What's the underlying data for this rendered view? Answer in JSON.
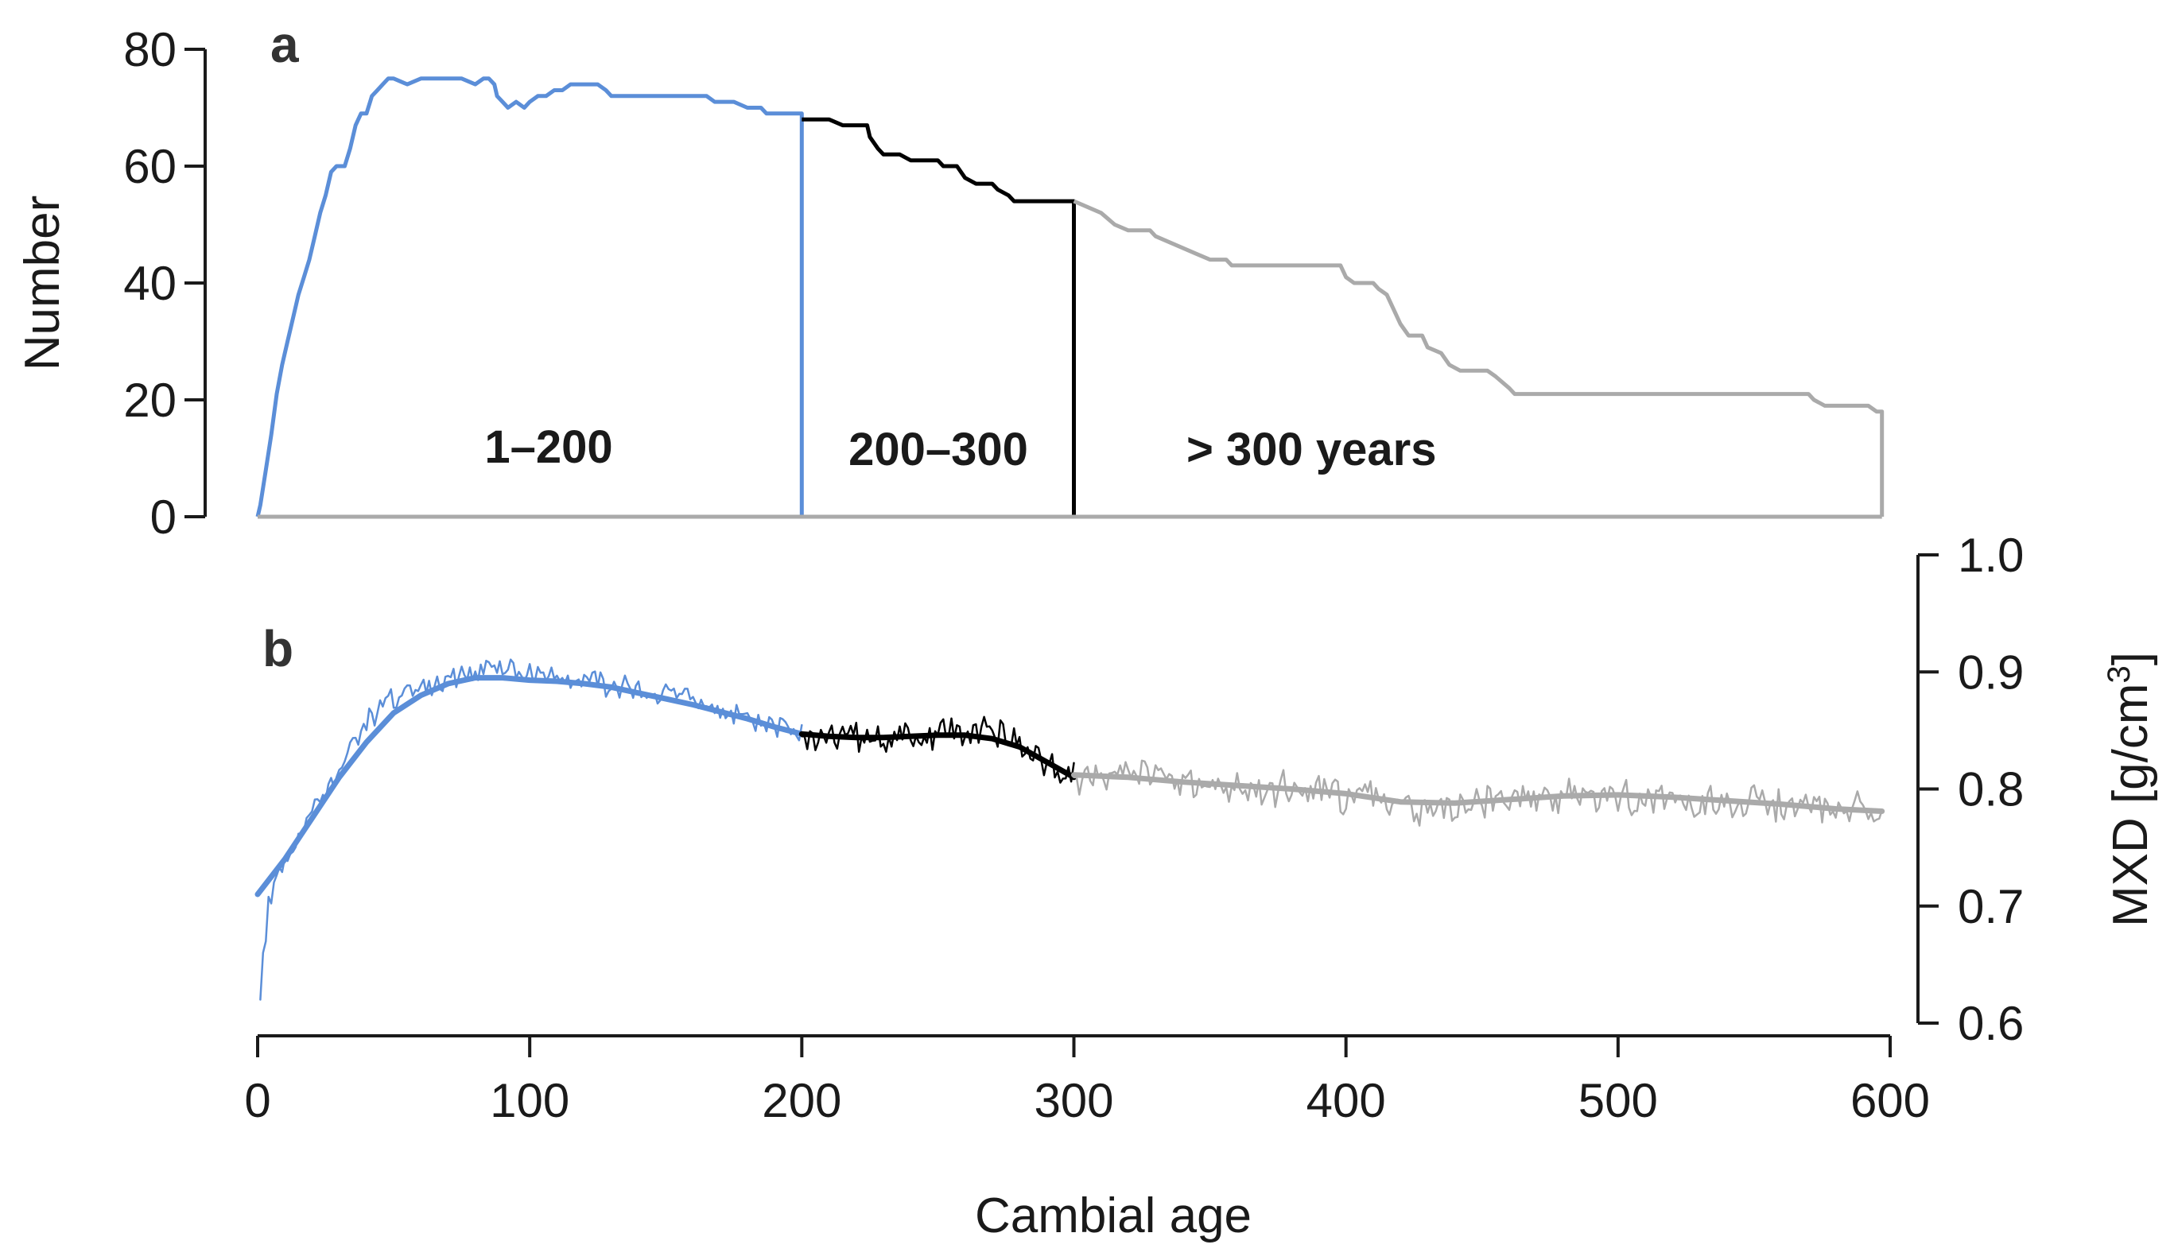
{
  "chart_data": [
    {
      "panel": "a",
      "type": "line",
      "xlabel": "",
      "ylabel": "Number",
      "xlim": [
        0,
        600
      ],
      "ylim": [
        0,
        80
      ],
      "yticks": [
        "0",
        "20",
        "40",
        "60",
        "80"
      ],
      "series": [
        {
          "name": "1–200",
          "color": "#5b8ed8",
          "points": [
            [
              0,
              0
            ],
            [
              1,
              2
            ],
            [
              3,
              8
            ],
            [
              5,
              14
            ],
            [
              7,
              21
            ],
            [
              9,
              26
            ],
            [
              11,
              30
            ],
            [
              13,
              34
            ],
            [
              15,
              38
            ],
            [
              17,
              41
            ],
            [
              19,
              44
            ],
            [
              21,
              48
            ],
            [
              23,
              52
            ],
            [
              25,
              55
            ],
            [
              27,
              59
            ],
            [
              29,
              60
            ],
            [
              32,
              60
            ],
            [
              34,
              63
            ],
            [
              36,
              67
            ],
            [
              38,
              69
            ],
            [
              40,
              69
            ],
            [
              42,
              72
            ],
            [
              44,
              73
            ],
            [
              46,
              74
            ],
            [
              48,
              75
            ],
            [
              50,
              75
            ],
            [
              55,
              74
            ],
            [
              60,
              75
            ],
            [
              65,
              75
            ],
            [
              70,
              75
            ],
            [
              75,
              75
            ],
            [
              80,
              74
            ],
            [
              83,
              75
            ],
            [
              85,
              75
            ],
            [
              87,
              74
            ],
            [
              88,
              72
            ],
            [
              90,
              71
            ],
            [
              92,
              70
            ],
            [
              95,
              71
            ],
            [
              98,
              70
            ],
            [
              100,
              71
            ],
            [
              103,
              72
            ],
            [
              106,
              72
            ],
            [
              109,
              73
            ],
            [
              112,
              73
            ],
            [
              115,
              74
            ],
            [
              120,
              74
            ],
            [
              125,
              74
            ],
            [
              128,
              73
            ],
            [
              130,
              72
            ],
            [
              140,
              72
            ],
            [
              150,
              72
            ],
            [
              160,
              72
            ],
            [
              165,
              72
            ],
            [
              168,
              71
            ],
            [
              175,
              71
            ],
            [
              180,
              70
            ],
            [
              185,
              70
            ],
            [
              187,
              69
            ],
            [
              190,
              69
            ],
            [
              195,
              69
            ],
            [
              200,
              69
            ],
            [
              200,
              0
            ]
          ]
        },
        {
          "name": "200–300",
          "color": "#000000",
          "points": [
            [
              200,
              68
            ],
            [
              210,
              68
            ],
            [
              215,
              67
            ],
            [
              224,
              67
            ],
            [
              225,
              65
            ],
            [
              228,
              63
            ],
            [
              230,
              62
            ],
            [
              236,
              62
            ],
            [
              240,
              61
            ],
            [
              250,
              61
            ],
            [
              252,
              60
            ],
            [
              257,
              60
            ],
            [
              260,
              58
            ],
            [
              264,
              57
            ],
            [
              270,
              57
            ],
            [
              272,
              56
            ],
            [
              276,
              55
            ],
            [
              278,
              54
            ],
            [
              285,
              54
            ],
            [
              290,
              54
            ],
            [
              300,
              54
            ],
            [
              300,
              0
            ]
          ]
        },
        {
          "name": "> 300 years",
          "color": "#aaaaaa",
          "points": [
            [
              300,
              54
            ],
            [
              305,
              53
            ],
            [
              310,
              52
            ],
            [
              315,
              50
            ],
            [
              320,
              49
            ],
            [
              328,
              49
            ],
            [
              330,
              48
            ],
            [
              335,
              47
            ],
            [
              340,
              46
            ],
            [
              345,
              45
            ],
            [
              350,
              44
            ],
            [
              356,
              44
            ],
            [
              358,
              43
            ],
            [
              370,
              43
            ],
            [
              390,
              43
            ],
            [
              398,
              43
            ],
            [
              400,
              41
            ],
            [
              403,
              40
            ],
            [
              410,
              40
            ],
            [
              412,
              39
            ],
            [
              415,
              38
            ],
            [
              418,
              35
            ],
            [
              420,
              33
            ],
            [
              423,
              31
            ],
            [
              428,
              31
            ],
            [
              430,
              29
            ],
            [
              435,
              28
            ],
            [
              438,
              26
            ],
            [
              442,
              25
            ],
            [
              452,
              25
            ],
            [
              455,
              24
            ],
            [
              460,
              22
            ],
            [
              462,
              21
            ],
            [
              470,
              21
            ],
            [
              500,
              21
            ],
            [
              530,
              21
            ],
            [
              560,
              21
            ],
            [
              570,
              21
            ],
            [
              572,
              20
            ],
            [
              576,
              19
            ],
            [
              585,
              19
            ],
            [
              592,
              19
            ],
            [
              595,
              18
            ],
            [
              597,
              18
            ],
            [
              597,
              0
            ]
          ]
        },
        {
          "name": "baseline",
          "color": "#aaaaaa",
          "points": [
            [
              0,
              0
            ],
            [
              597,
              0
            ]
          ]
        }
      ],
      "annotations": [
        "1–200",
        "200–300",
        "> 300 years"
      ]
    },
    {
      "panel": "b",
      "type": "line",
      "xlabel": "Cambial age",
      "ylabel": "MXD [g/cm3]",
      "xlim": [
        0,
        600
      ],
      "ylim": [
        0.6,
        1.0
      ],
      "xticks": [
        "0",
        "100",
        "200",
        "300",
        "400",
        "500",
        "600"
      ],
      "yticks": [
        "0.6",
        "0.7",
        "0.8",
        "0.9",
        "1.0"
      ],
      "noise_seed": 17,
      "series": [
        {
          "name": "1–200 raw",
          "color": "#5b8ed8",
          "noise": 0.008,
          "points": [
            [
              1,
              0.62
            ],
            [
              2,
              0.66
            ],
            [
              4,
              0.7
            ],
            [
              8,
              0.73
            ],
            [
              15,
              0.76
            ],
            [
              25,
              0.8
            ],
            [
              35,
              0.84
            ],
            [
              45,
              0.87
            ],
            [
              55,
              0.885
            ],
            [
              70,
              0.895
            ],
            [
              80,
              0.9
            ],
            [
              85,
              0.91
            ],
            [
              95,
              0.9
            ],
            [
              110,
              0.895
            ],
            [
              130,
              0.89
            ],
            [
              150,
              0.88
            ],
            [
              165,
              0.87
            ],
            [
              180,
              0.86
            ],
            [
              195,
              0.85
            ],
            [
              200,
              0.845
            ]
          ]
        },
        {
          "name": "1–200 smooth",
          "color": "#5b8ed8",
          "width": 7,
          "points": [
            [
              0,
              0.71
            ],
            [
              10,
              0.74
            ],
            [
              20,
              0.775
            ],
            [
              30,
              0.81
            ],
            [
              40,
              0.84
            ],
            [
              50,
              0.865
            ],
            [
              60,
              0.88
            ],
            [
              70,
              0.89
            ],
            [
              80,
              0.895
            ],
            [
              90,
              0.895
            ],
            [
              100,
              0.893
            ],
            [
              110,
              0.892
            ],
            [
              120,
              0.89
            ],
            [
              130,
              0.887
            ],
            [
              140,
              0.882
            ],
            [
              150,
              0.877
            ],
            [
              160,
              0.872
            ],
            [
              170,
              0.866
            ],
            [
              180,
              0.86
            ],
            [
              190,
              0.853
            ],
            [
              200,
              0.847
            ]
          ]
        },
        {
          "name": "200–300 raw",
          "color": "#000000",
          "noise": 0.011,
          "points": [
            [
              200,
              0.845
            ],
            [
              220,
              0.843
            ],
            [
              240,
              0.845
            ],
            [
              255,
              0.848
            ],
            [
              265,
              0.852
            ],
            [
              275,
              0.845
            ],
            [
              285,
              0.83
            ],
            [
              295,
              0.815
            ],
            [
              300,
              0.81
            ]
          ]
        },
        {
          "name": "200–300 smooth",
          "color": "#000000",
          "width": 7,
          "points": [
            [
              200,
              0.847
            ],
            [
              210,
              0.845
            ],
            [
              220,
              0.844
            ],
            [
              230,
              0.844
            ],
            [
              240,
              0.845
            ],
            [
              250,
              0.846
            ],
            [
              260,
              0.846
            ],
            [
              270,
              0.843
            ],
            [
              280,
              0.836
            ],
            [
              290,
              0.823
            ],
            [
              300,
              0.81
            ]
          ]
        },
        {
          "name": "> 300 years raw",
          "color": "#aaaaaa",
          "noise": 0.012,
          "points": [
            [
              300,
              0.81
            ],
            [
              320,
              0.81
            ],
            [
              340,
              0.805
            ],
            [
              360,
              0.8
            ],
            [
              380,
              0.8
            ],
            [
              400,
              0.795
            ],
            [
              420,
              0.785
            ],
            [
              440,
              0.785
            ],
            [
              460,
              0.79
            ],
            [
              480,
              0.795
            ],
            [
              500,
              0.795
            ],
            [
              520,
              0.79
            ],
            [
              540,
              0.79
            ],
            [
              560,
              0.785
            ],
            [
              580,
              0.782
            ],
            [
              597,
              0.78
            ]
          ]
        },
        {
          "name": "> 300 years smooth",
          "color": "#aaaaaa",
          "width": 7,
          "points": [
            [
              300,
              0.812
            ],
            [
              320,
              0.81
            ],
            [
              340,
              0.806
            ],
            [
              360,
              0.803
            ],
            [
              380,
              0.8
            ],
            [
              400,
              0.796
            ],
            [
              420,
              0.789
            ],
            [
              440,
              0.788
            ],
            [
              460,
              0.791
            ],
            [
              480,
              0.794
            ],
            [
              500,
              0.795
            ],
            [
              520,
              0.793
            ],
            [
              540,
              0.79
            ],
            [
              560,
              0.787
            ],
            [
              580,
              0.783
            ],
            [
              597,
              0.781
            ]
          ]
        }
      ]
    }
  ],
  "labels": {
    "panel_a": "a",
    "panel_b": "b",
    "ylabel_left": "Number",
    "xlabel": "Cambial age",
    "ylabel_right_main": "MXD [g/cm",
    "ylabel_right_sup": "3",
    "ylabel_right_close": "]",
    "group_1": "1–200",
    "group_2": "200–300",
    "group_3": "> 300 years"
  }
}
